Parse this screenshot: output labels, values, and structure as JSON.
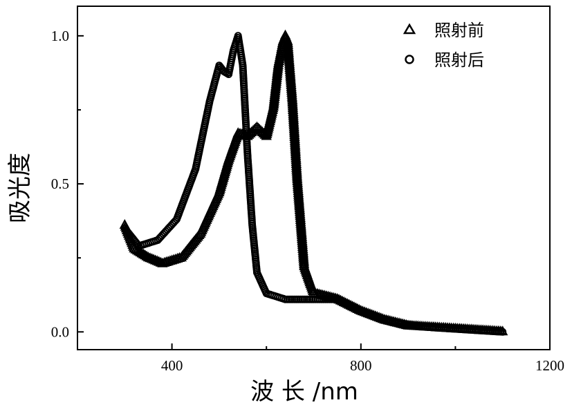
{
  "chart_data": {
    "type": "scatter",
    "xlabel": "波 长 /nm",
    "ylabel": "吸光度",
    "xlim": [
      200,
      1200
    ],
    "ylim": [
      -0.06,
      1.1
    ],
    "x_ticks": [
      400,
      800,
      1200
    ],
    "x_minor_ticks": [
      600,
      1000
    ],
    "y_ticks": [
      0.0,
      0.5,
      1.0
    ],
    "y_tick_labels": [
      "0.0",
      "0.5",
      "1.0"
    ],
    "y_minor_ticks": [
      0.25,
      0.75
    ],
    "grid": false,
    "legend_position": "top-right",
    "series": [
      {
        "name": "照射前",
        "marker": "triangle",
        "x": [
          300,
          320,
          350,
          380,
          420,
          460,
          500,
          520,
          540,
          560,
          580,
          600,
          615,
          625,
          635,
          640,
          645,
          655,
          665,
          680,
          700,
          750,
          800,
          850,
          900,
          950,
          1000,
          1050,
          1100
        ],
        "y": [
          0.36,
          0.28,
          0.25,
          0.23,
          0.25,
          0.33,
          0.47,
          0.58,
          0.67,
          0.66,
          0.69,
          0.66,
          0.76,
          0.9,
          0.98,
          1.0,
          0.98,
          0.78,
          0.52,
          0.22,
          0.13,
          0.11,
          0.07,
          0.04,
          0.02,
          0.015,
          0.01,
          0.005,
          0.0
        ]
      },
      {
        "name": "照射后",
        "marker": "circle",
        "x": [
          300,
          330,
          370,
          410,
          450,
          480,
          500,
          510,
          520,
          530,
          540,
          550,
          560,
          570,
          580,
          600,
          640,
          700,
          750,
          800,
          850,
          900,
          950,
          1000,
          1050,
          1100
        ],
        "y": [
          0.35,
          0.29,
          0.31,
          0.38,
          0.55,
          0.78,
          0.9,
          0.88,
          0.87,
          0.95,
          1.0,
          0.9,
          0.6,
          0.36,
          0.2,
          0.13,
          0.11,
          0.11,
          0.11,
          0.07,
          0.04,
          0.025,
          0.015,
          0.01,
          0.005,
          0.0
        ]
      }
    ]
  }
}
